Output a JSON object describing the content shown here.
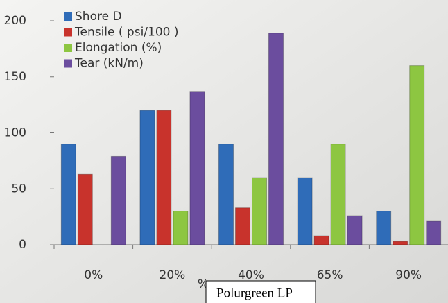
{
  "chart_data": {
    "type": "bar",
    "categories": [
      "0%",
      "20%",
      "40%",
      "65%",
      "90%"
    ],
    "series": [
      {
        "name": "Shore D",
        "color": "#2f6cb8",
        "values": [
          90,
          120,
          90,
          60,
          30
        ]
      },
      {
        "name": "Tensile ( psi/100 )",
        "color": "#c8332c",
        "values": [
          63,
          120,
          33,
          8,
          3
        ]
      },
      {
        "name": "Elongation (%)",
        "color": "#8dc641",
        "values": [
          0,
          30,
          60,
          90,
          160
        ]
      },
      {
        "name": "Tear (kN/m)",
        "color": "#6b4d9e",
        "values": [
          79,
          137,
          189,
          26,
          21
        ]
      }
    ],
    "ylim": [
      0,
      200
    ],
    "yticks": [
      0,
      50,
      100,
      150,
      200
    ],
    "xlabel": "%",
    "annotation": "Polurgreen LP",
    "legend": "upper left"
  }
}
